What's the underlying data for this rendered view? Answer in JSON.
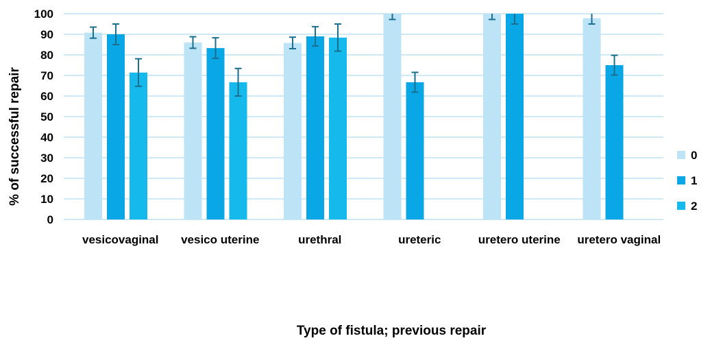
{
  "chart_data": {
    "type": "bar",
    "xlabel": "Type of fistula; previous repair",
    "ylabel": "% of successful repair",
    "ylim": [
      0,
      100
    ],
    "yticks": [
      0,
      10,
      20,
      30,
      40,
      50,
      60,
      70,
      80,
      90,
      100
    ],
    "grid": true,
    "legend_position": "right",
    "categories": [
      "vesicovaginal",
      "vesico uterine",
      "urethral",
      "ureteric",
      "uretero uterine",
      "uretero vaginal"
    ],
    "series": [
      {
        "name": "0",
        "color": "#bde3f6",
        "values": [
          90.8,
          86.0,
          85.8,
          100,
          100,
          97.8
        ],
        "errors": [
          2.7,
          2.8,
          2.8,
          2.8,
          2.8,
          2.8
        ]
      },
      {
        "name": "1",
        "color": "#0aa7e6",
        "values": [
          90.0,
          83.3,
          89.0,
          66.7,
          100,
          75.0
        ],
        "errors": [
          5.0,
          5.0,
          4.7,
          4.8,
          5.0,
          4.8
        ]
      },
      {
        "name": "2",
        "color": "#15b9ec",
        "values": [
          71.4,
          66.7,
          88.4,
          null,
          null,
          null
        ],
        "errors": [
          6.7,
          6.7,
          6.6,
          null,
          null,
          null
        ]
      }
    ],
    "error_bar_color": "#1a6e8e",
    "grid_color": "#bfe3f3"
  }
}
